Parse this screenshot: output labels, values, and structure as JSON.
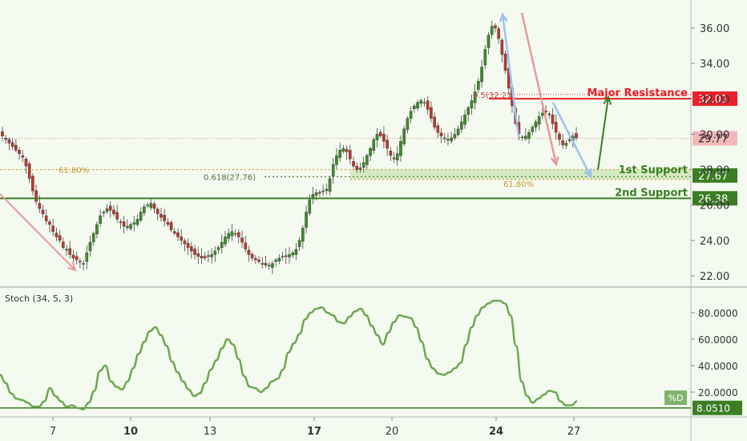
{
  "chart_data": [
    {
      "type": "candlestick",
      "ylim": [
        21.0,
        37.6
      ],
      "y_ticks": [
        "36.00",
        "34.00",
        "32.00",
        "30.00",
        "28.00",
        "26.00",
        "24.00",
        "22.00"
      ],
      "x_ticks": [
        {
          "label": "7",
          "bold": false
        },
        {
          "label": "10",
          "bold": true
        },
        {
          "label": "13",
          "bold": false
        },
        {
          "label": "17",
          "bold": true
        },
        {
          "label": "20",
          "bold": false
        },
        {
          "label": "24",
          "bold": true
        },
        {
          "label": "27",
          "bold": false
        }
      ],
      "colors": {
        "up": "#3d8c2a",
        "down": "#c0392b",
        "resistance": "#e8212a",
        "support": "#3b7d23",
        "fib": "#c8962a",
        "arrow_red": "#e89a9a",
        "arrow_blue": "#9cc3ef",
        "arrow_green": "#3b7d23"
      },
      "closes": [
        29.9,
        29.7,
        29.5,
        29.3,
        29.1,
        28.9,
        28.7,
        28.2,
        27.5,
        26.8,
        26.2,
        25.8,
        25.5,
        25.1,
        24.9,
        24.5,
        24.2,
        24.0,
        23.6,
        23.5,
        23.2,
        23.0,
        22.9,
        22.8,
        22.7,
        23.3,
        23.9,
        24.4,
        24.9,
        25.4,
        25.6,
        25.8,
        25.7,
        25.5,
        25.2,
        25.0,
        24.8,
        24.8,
        24.9,
        25.0,
        25.2,
        25.6,
        25.9,
        26.0,
        26.1,
        25.8,
        25.5,
        25.3,
        25.1,
        24.9,
        24.6,
        24.4,
        24.2,
        24.0,
        23.8,
        23.6,
        23.4,
        23.2,
        23.1,
        23.0,
        23.0,
        23.1,
        23.2,
        23.4,
        23.6,
        23.9,
        24.2,
        24.4,
        24.5,
        24.4,
        24.2,
        23.9,
        23.5,
        23.2,
        23.0,
        22.9,
        22.8,
        22.7,
        22.6,
        22.6,
        22.7,
        22.9,
        23.0,
        23.1,
        23.1,
        23.2,
        23.3,
        23.5,
        24.0,
        24.7,
        25.6,
        26.3,
        26.6,
        26.7,
        26.7,
        26.8,
        26.9,
        27.5,
        28.3,
        28.8,
        29.1,
        29.2,
        29.0,
        28.6,
        28.2,
        28.0,
        28.1,
        28.4,
        28.8,
        29.2,
        29.7,
        30.0,
        29.9,
        29.6,
        29.2,
        28.8,
        28.6,
        28.9,
        29.6,
        30.3,
        30.9,
        31.3,
        31.6,
        31.8,
        31.9,
        31.8,
        31.4,
        30.9,
        30.4,
        30.1,
        29.9,
        29.8,
        29.7,
        29.8,
        30.0,
        30.3,
        30.7,
        31.1,
        31.5,
        31.9,
        32.4,
        33.0,
        33.8,
        34.8,
        35.6,
        36.1,
        36.0,
        35.4,
        34.5,
        33.6,
        32.6,
        31.6,
        30.6,
        30.0,
        29.8,
        29.9,
        30.1,
        30.4,
        30.7,
        31.0,
        31.2,
        31.3,
        31.1,
        30.6,
        30.1,
        29.7,
        29.4,
        29.5,
        29.7,
        29.9,
        29.8
      ],
      "stochastic": {
        "label": "Stoch (34, 5, 3)",
        "ylim": [
          5,
          95
        ],
        "y_ticks": [
          "80.0000",
          "60.0000",
          "40.0000",
          "20.0000"
        ],
        "d_label": "%D",
        "last_value": "8.0510",
        "values": [
          33,
          27,
          19,
          15,
          14,
          12,
          9,
          9,
          13,
          23,
          17,
          13,
          9,
          10,
          8,
          7,
          12,
          21,
          36,
          40,
          28,
          24,
          22,
          28,
          38,
          49,
          58,
          66,
          69,
          63,
          55,
          43,
          35,
          28,
          22,
          17,
          19,
          27,
          37,
          44,
          53,
          60,
          56,
          45,
          32,
          24,
          23,
          20,
          23,
          28,
          30,
          37,
          50,
          57,
          64,
          75,
          80,
          83,
          84,
          80,
          78,
          73,
          72,
          77,
          81,
          83,
          78,
          70,
          63,
          56,
          65,
          73,
          78,
          77,
          76,
          69,
          58,
          45,
          38,
          34,
          33,
          35,
          38,
          42,
          56,
          69,
          78,
          84,
          87,
          89,
          89,
          87,
          78,
          55,
          28,
          17,
          12,
          15,
          18,
          21,
          20,
          13,
          10,
          10,
          13
        ]
      },
      "levels": [
        {
          "name": "Major Resistance",
          "value": "32.01",
          "y": 32.01
        },
        {
          "name": "1st Support",
          "value": "27.67",
          "y": 27.67
        },
        {
          "name": "2nd Support",
          "value": "26.38",
          "y": 26.38
        }
      ],
      "last_price": "29.77",
      "fib_labels": {
        "left_pct": "61.80%",
        "mid": "0.618(27.76)",
        "right_pct": "61.80%",
        "top": "0.5(32.21)"
      }
    }
  ]
}
